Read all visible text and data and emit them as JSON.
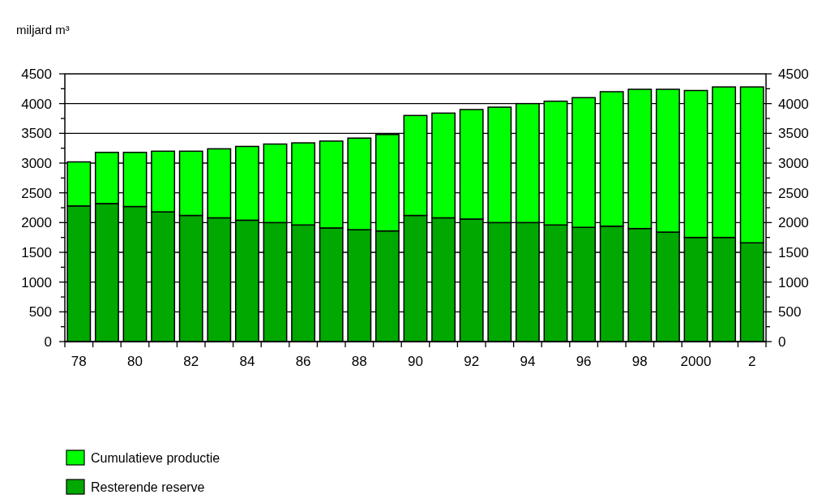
{
  "chart_data": {
    "type": "bar",
    "stacked": true,
    "ylabel": "miljard m³",
    "categories": [
      "78",
      null,
      "80",
      null,
      "82",
      null,
      "84",
      null,
      "86",
      null,
      "88",
      null,
      "90",
      null,
      "92",
      null,
      "94",
      null,
      "96",
      null,
      "98",
      null,
      "2000",
      null,
      "2"
    ],
    "series": [
      {
        "name": "Resterende reserve",
        "color": "#00a800",
        "values": [
          2280,
          2320,
          2270,
          2180,
          2120,
          2080,
          2040,
          2000,
          1960,
          1910,
          1880,
          1860,
          2120,
          2080,
          2060,
          2000,
          2000,
          1960,
          1920,
          1940,
          1900,
          1840,
          1750,
          1750,
          1660
        ]
      },
      {
        "name": "Cumulatieve productie",
        "color": "#00ff00",
        "values": [
          740,
          860,
          910,
          1020,
          1080,
          1160,
          1240,
          1320,
          1380,
          1460,
          1540,
          1620,
          1680,
          1760,
          1840,
          1940,
          2000,
          2080,
          2180,
          2260,
          2340,
          2400,
          2470,
          2530,
          2620
        ]
      }
    ],
    "ylim": [
      0,
      4500
    ],
    "yticks": [
      0,
      {
        "value": 250,
        "label": null
      },
      500,
      {
        "value": 750,
        "label": null
      },
      1000,
      {
        "value": 1250,
        "label": null
      },
      1500,
      {
        "value": 1750,
        "label": null
      },
      2000,
      {
        "value": 2250,
        "label": null
      },
      2500,
      {
        "value": 2750,
        "label": null
      },
      3000,
      {
        "value": 3250,
        "label": null
      },
      3500,
      {
        "value": 3750,
        "label": null
      },
      4000,
      {
        "value": 4250,
        "label": null
      },
      4500
    ],
    "y2lim": [
      0,
      4500
    ],
    "y2ticks": [
      0,
      {
        "value": 250,
        "label": null
      },
      500,
      {
        "value": 750,
        "label": null
      },
      1000,
      {
        "value": 1250,
        "label": null
      },
      1500,
      {
        "value": 1750,
        "label": null
      },
      2000,
      {
        "value": 2250,
        "label": null
      },
      2500,
      {
        "value": 2750,
        "label": null
      },
      3000,
      {
        "value": 3250,
        "label": null
      },
      3500,
      {
        "value": 3750,
        "label": null
      },
      4000,
      {
        "value": 4250,
        "label": null
      },
      4500
    ],
    "grid": "y",
    "legend": "bottom left"
  }
}
